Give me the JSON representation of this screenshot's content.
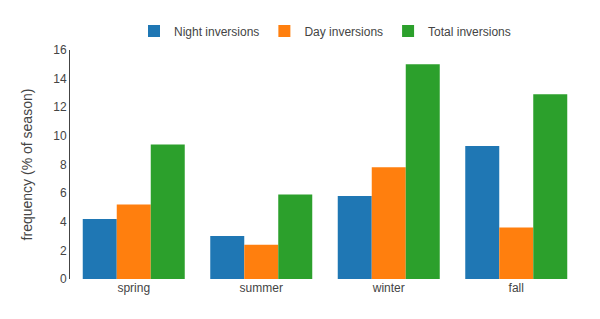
{
  "chart_data": {
    "type": "bar",
    "categories": [
      "spring",
      "summer",
      "winter",
      "fall"
    ],
    "series": [
      {
        "name": "Night inversions",
        "values": [
          4.2,
          3.0,
          5.8,
          9.3
        ]
      },
      {
        "name": "Day inversions",
        "values": [
          5.2,
          2.4,
          7.8,
          3.6
        ]
      },
      {
        "name": "Total inversions",
        "values": [
          9.4,
          5.9,
          15.0,
          12.9
        ]
      }
    ],
    "ylabel": "frequency (% of season)",
    "ylim": [
      0,
      16
    ],
    "yticks": [
      0,
      2,
      4,
      6,
      8,
      10,
      12,
      14,
      16
    ],
    "grid": false,
    "legend": "top"
  }
}
